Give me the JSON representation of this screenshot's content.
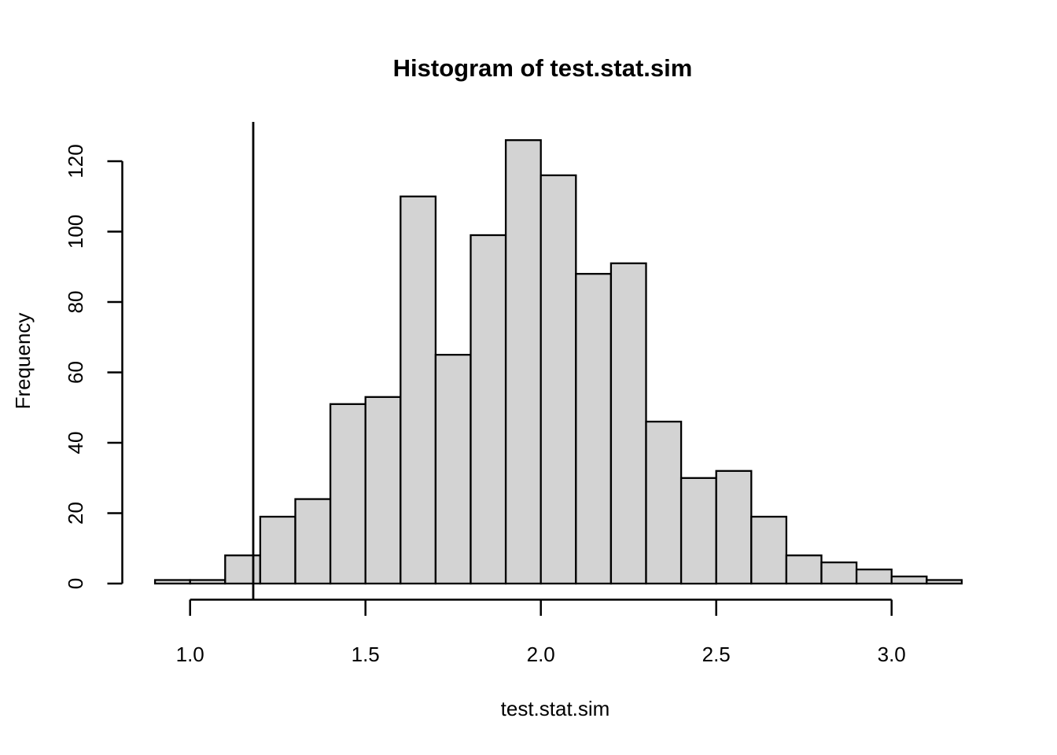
{
  "figure": {
    "title": "Histogram of test.stat.sim",
    "x_label": "test.stat.sim",
    "y_label": "Frequency"
  },
  "chart_data": {
    "type": "bar",
    "subtype": "histogram",
    "title": "Histogram of test.stat.sim",
    "xlabel": "test.stat.sim",
    "ylabel": "Frequency",
    "bin_start": 0.9,
    "bin_width": 0.1,
    "bin_edges": [
      0.9,
      1.0,
      1.1,
      1.2,
      1.3,
      1.4,
      1.5,
      1.6,
      1.7,
      1.8,
      1.9,
      2.0,
      2.1,
      2.2,
      2.3,
      2.4,
      2.5,
      2.6,
      2.7,
      2.8,
      2.9,
      3.0,
      3.1,
      3.2
    ],
    "counts": [
      1,
      1,
      8,
      19,
      24,
      51,
      53,
      110,
      65,
      99,
      126,
      116,
      88,
      91,
      46,
      30,
      32,
      19,
      8,
      6,
      4,
      2,
      1
    ],
    "x_ticks": [
      1.0,
      1.5,
      2.0,
      2.5,
      3.0
    ],
    "x_tick_labels": [
      "1.0",
      "1.5",
      "2.0",
      "2.5",
      "3.0"
    ],
    "y_ticks": [
      0,
      20,
      40,
      60,
      80,
      100,
      120
    ],
    "y_tick_labels": [
      "0",
      "20",
      "40",
      "60",
      "80",
      "100",
      "120"
    ],
    "xlim": [
      0.9,
      3.2
    ],
    "ylim": [
      0,
      126
    ],
    "vline_x": 1.18,
    "grid": false,
    "legend": null,
    "colors": {
      "bar_fill": "#d3d3d3",
      "bar_stroke": "#000000",
      "axis_color": "#000000",
      "vline_color": "#000000",
      "background": "#ffffff",
      "text": "#000000"
    }
  }
}
